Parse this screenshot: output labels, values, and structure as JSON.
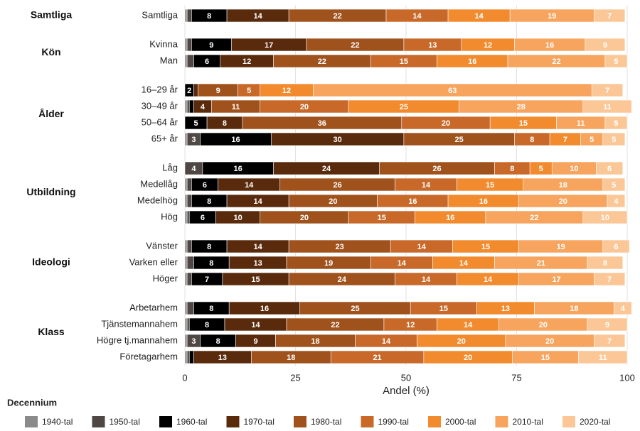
{
  "chart_data": {
    "type": "stacked-bar-horizontal",
    "x_label": "Andel (%)",
    "legend_title": "Decennium",
    "xlim": [
      0,
      100
    ],
    "xticks": [
      0,
      25,
      50,
      75,
      100
    ],
    "grid": true,
    "legend_position": "bottom",
    "groups": [
      {
        "name": "Samtliga",
        "categories": [
          "Samtliga"
        ]
      },
      {
        "name": "Kön",
        "categories": [
          "Kvinna",
          "Man"
        ]
      },
      {
        "name": "Ålder",
        "categories": [
          "16–29 år",
          "30–49 år",
          "50–64 år",
          "65+ år"
        ]
      },
      {
        "name": "Utbildning",
        "categories": [
          "Låg",
          "Medellåg",
          "Medelhög",
          "Hög"
        ]
      },
      {
        "name": "Ideologi",
        "categories": [
          "Vänster",
          "Varken eller",
          "Höger"
        ]
      },
      {
        "name": "Klass",
        "categories": [
          "Arbetarhem",
          "Tjänstemannahem",
          "Högre tj.mannahem",
          "Företagarhem"
        ]
      }
    ],
    "series": [
      {
        "name": "1940-tal",
        "color": "#8a8a8a",
        "values": [
          0.5,
          0.5,
          0.5,
          0,
          0.5,
          0,
          0.5,
          0,
          0.5,
          0.5,
          0.5,
          0.5,
          0.5,
          0.5,
          0.5,
          0.5,
          0.5,
          0.5
        ]
      },
      {
        "name": "1950-tal",
        "color": "#4f4743",
        "values": [
          1,
          1,
          1.5,
          0,
          0.5,
          0,
          3,
          4,
          1,
          1,
          0.5,
          1,
          1.5,
          1,
          1.5,
          0.5,
          3,
          0.5
        ]
      },
      {
        "name": "1960-tal",
        "color": "#000000",
        "values": [
          8,
          9,
          6,
          2,
          1,
          5,
          16,
          16,
          6,
          8,
          6,
          8,
          8,
          7,
          8,
          8,
          8,
          1
        ]
      },
      {
        "name": "1970-tal",
        "color": "#5a2a0c",
        "values": [
          14,
          17,
          12,
          1,
          4,
          8,
          30,
          24,
          14,
          14,
          10,
          14,
          13,
          15,
          16,
          14,
          9,
          13
        ]
      },
      {
        "name": "1980-tal",
        "color": "#a0521d",
        "values": [
          22,
          22,
          22,
          9,
          11,
          36,
          25,
          26,
          26,
          20,
          20,
          23,
          19,
          24,
          25,
          22,
          18,
          18
        ]
      },
      {
        "name": "1990-tal",
        "color": "#c8692a",
        "values": [
          14,
          13,
          15,
          5,
          20,
          20,
          8,
          8,
          14,
          16,
          15,
          14,
          14,
          14,
          15,
          12,
          14,
          21
        ]
      },
      {
        "name": "2000-tal",
        "color": "#f28a2e",
        "values": [
          14,
          12,
          16,
          12,
          25,
          15,
          7,
          5,
          15,
          16,
          16,
          15,
          14,
          14,
          13,
          14,
          20,
          20
        ]
      },
      {
        "name": "2010-tal",
        "color": "#f6a45e",
        "values": [
          19,
          16,
          22,
          63,
          28,
          11,
          5,
          10,
          18,
          20,
          22,
          19,
          21,
          17,
          18,
          20,
          20,
          15
        ]
      },
      {
        "name": "2020-tal",
        "color": "#fbc796",
        "values": [
          7,
          9,
          5,
          7,
          11,
          5,
          5,
          6,
          5,
          4,
          10,
          6,
          8,
          7,
          4,
          9,
          7,
          11
        ]
      }
    ]
  }
}
